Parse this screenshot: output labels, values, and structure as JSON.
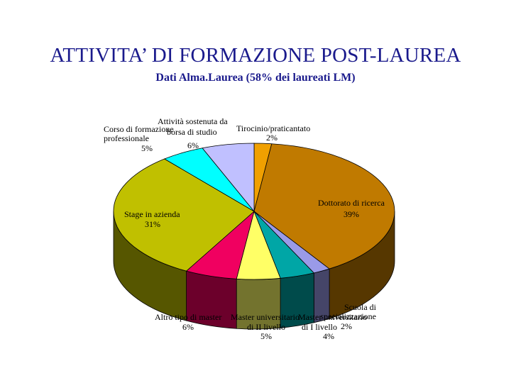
{
  "header": {
    "title": "ATTIVITA’ DI FORMAZIONE POST-LAUREA",
    "subtitle": "Dati Alma.Laurea (58% dei laureati LM)"
  },
  "chart_data": {
    "type": "pie",
    "three_d": true,
    "legend": "none",
    "title": "ATTIVITA’ DI FORMAZIONE POST-LAUREA",
    "subtitle": "Dati Alma.Laurea (58% dei laureati LM)",
    "slices": [
      {
        "label": "Tirocinio/praticantato",
        "value": 2,
        "value_label": "2%",
        "color": "#f0a000"
      },
      {
        "label": "Dottorato di ricerca",
        "value": 39,
        "value_label": "39%",
        "color": "#c07a00"
      },
      {
        "label": "Scuola di specializzazione",
        "value": 2,
        "value_label": "2%",
        "color": "#9a9ae8"
      },
      {
        "label": "Master universitario di I livello",
        "value": 4,
        "value_label": "4%",
        "color": "#00a6a6"
      },
      {
        "label": "Master universitario di II livello",
        "value": 5,
        "value_label": "5%",
        "color": "#ffff66"
      },
      {
        "label": "Altro tipo di master",
        "value": 6,
        "value_label": "6%",
        "color": "#f00060"
      },
      {
        "label": "Stage in azienda",
        "value": 31,
        "value_label": "31%",
        "color": "#c0c000"
      },
      {
        "label": "Corso di formazione professionale",
        "value": 5,
        "value_label": "5%",
        "color": "#00ffff"
      },
      {
        "label": "Attività sostenuta da borsa di studio",
        "value": 6,
        "value_label": "6%",
        "color": "#c0c0ff"
      }
    ]
  }
}
